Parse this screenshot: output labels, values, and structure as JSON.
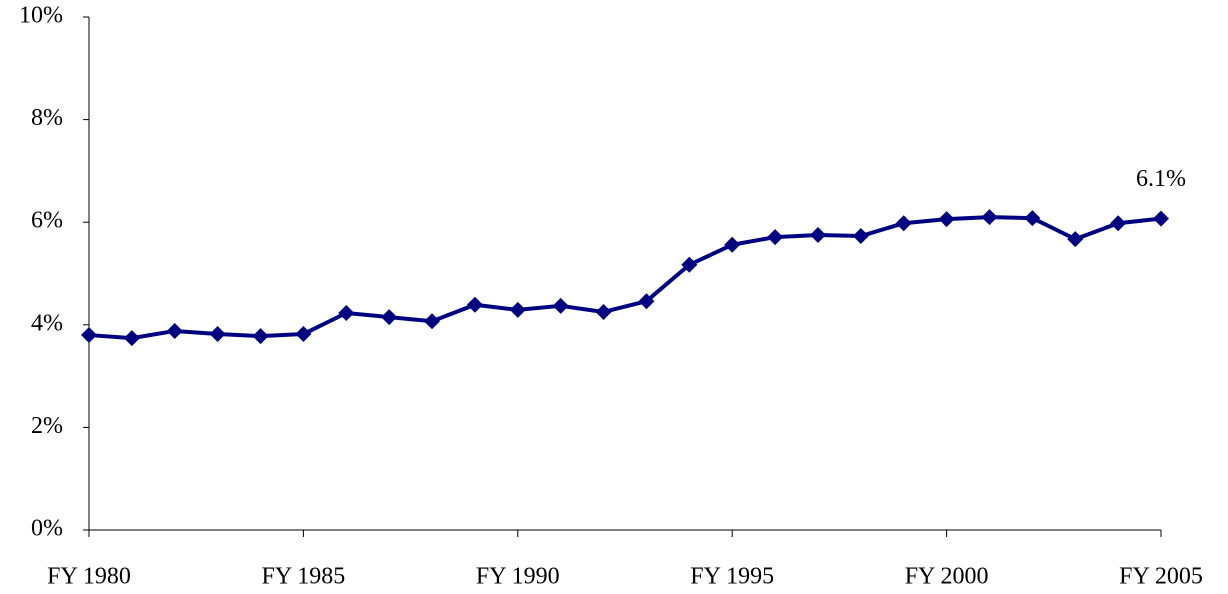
{
  "chart_data": {
    "type": "line",
    "categories": [
      "FY 1980",
      null,
      null,
      null,
      null,
      "FY 1985",
      null,
      null,
      null,
      null,
      "FY 1990",
      null,
      null,
      null,
      null,
      "FY 1995",
      null,
      null,
      null,
      null,
      "FY 2000",
      null,
      null,
      null,
      null,
      "FY 2005"
    ],
    "series": [
      {
        "color": "#000080",
        "values": [
          3.8,
          3.74,
          3.88,
          3.82,
          3.78,
          3.82,
          4.23,
          4.15,
          4.07,
          4.39,
          4.29,
          4.37,
          4.25,
          4.46,
          5.17,
          5.56,
          5.71,
          5.75,
          5.73,
          5.98,
          6.06,
          6.1,
          6.08,
          5.67,
          5.98,
          6.07
        ],
        "value_labels": [
          null,
          null,
          null,
          null,
          null,
          null,
          null,
          null,
          null,
          null,
          null,
          null,
          null,
          null,
          null,
          null,
          null,
          null,
          null,
          null,
          null,
          null,
          null,
          null,
          null,
          "6.1%"
        ]
      }
    ],
    "ylim": [
      0,
      10
    ],
    "yticks": [
      {
        "value": 0,
        "label": "0%"
      },
      {
        "value": 2,
        "label": "2%"
      },
      {
        "value": 4,
        "label": "4%"
      },
      {
        "value": 6,
        "label": "6%"
      },
      {
        "value": 8,
        "label": "8%"
      },
      {
        "value": 10,
        "label": "10%"
      }
    ]
  }
}
